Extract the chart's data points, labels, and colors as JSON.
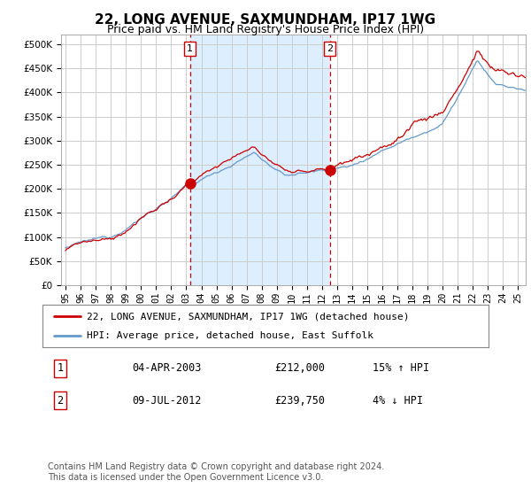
{
  "title": "22, LONG AVENUE, SAXMUNDHAM, IP17 1WG",
  "subtitle": "Price paid vs. HM Land Registry's House Price Index (HPI)",
  "ytick_values": [
    0,
    50000,
    100000,
    150000,
    200000,
    250000,
    300000,
    350000,
    400000,
    450000,
    500000
  ],
  "ylim": [
    0,
    520000
  ],
  "xlim_start": 1994.7,
  "xlim_end": 2025.5,
  "plot_bg_color": "#ffffff",
  "shade_color": "#ddeeff",
  "grid_color": "#cccccc",
  "hpi_color": "#6699cc",
  "price_color": "#cc0000",
  "transaction1_x": 2003.25,
  "transaction1_y": 212000,
  "transaction1_label": "1",
  "transaction2_x": 2012.52,
  "transaction2_y": 239750,
  "transaction2_label": "2",
  "vline_color": "#cc0000",
  "legend_property_label": "22, LONG AVENUE, SAXMUNDHAM, IP17 1WG (detached house)",
  "legend_hpi_label": "HPI: Average price, detached house, East Suffolk",
  "table_row1": [
    "1",
    "04-APR-2003",
    "£212,000",
    "15% ↑ HPI"
  ],
  "table_row2": [
    "2",
    "09-JUL-2012",
    "£239,750",
    "4% ↓ HPI"
  ],
  "footer_text": "Contains HM Land Registry data © Crown copyright and database right 2024.\nThis data is licensed under the Open Government Licence v3.0.",
  "title_fontsize": 11,
  "subtitle_fontsize": 9,
  "tick_fontsize": 7.5,
  "legend_fontsize": 8,
  "table_fontsize": 8.5,
  "footer_fontsize": 7
}
